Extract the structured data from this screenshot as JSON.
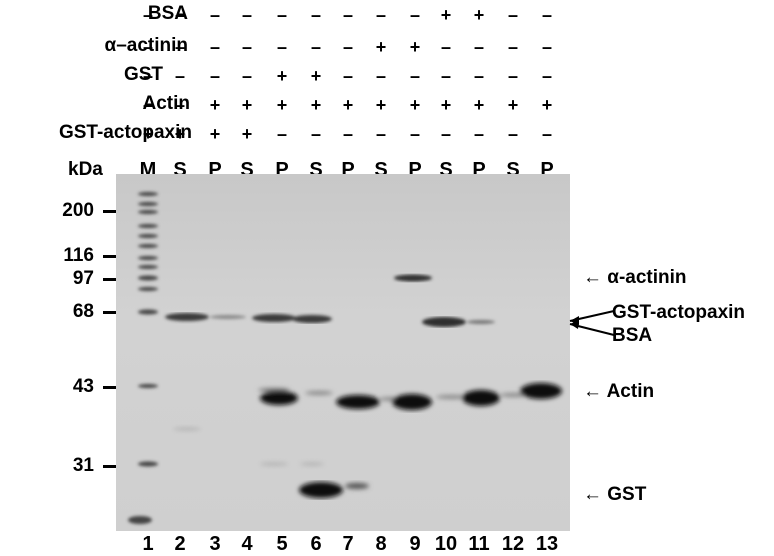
{
  "conditions": [
    {
      "label": "BSA",
      "signs": [
        "–",
        "–",
        "–",
        "–",
        "–",
        "–",
        "–",
        "–",
        "–",
        "+",
        "+",
        "–",
        "–"
      ]
    },
    {
      "label": "α–actinin",
      "signs": [
        "–",
        "–",
        "–",
        "–",
        "–",
        "–",
        "–",
        "+",
        "+",
        "–",
        "–",
        "–",
        "–"
      ]
    },
    {
      "label": "GST",
      "signs": [
        "–",
        "–",
        "–",
        "–",
        "+",
        "+",
        "–",
        "–",
        "–",
        "–",
        "–",
        "–",
        "–"
      ]
    },
    {
      "label": "Actin",
      "signs": [
        "–",
        "–",
        "+",
        "+",
        "+",
        "+",
        "+",
        "+",
        "+",
        "+",
        "+",
        "+",
        "+"
      ]
    },
    {
      "label": "GST-actopaxin",
      "signs": [
        "+",
        "+",
        "+",
        "+",
        "–",
        "–",
        "–",
        "–",
        "–",
        "–",
        "–",
        "–",
        "–"
      ]
    }
  ],
  "lane_headers": [
    "M",
    "S",
    "P",
    "S",
    "P",
    "S",
    "P",
    "S",
    "P",
    "S",
    "P",
    "S",
    "P"
  ],
  "kda_label": "kDa",
  "markers": [
    "200",
    "116",
    "97",
    "68",
    "43",
    "31"
  ],
  "lane_numbers": [
    "1",
    "2",
    "3",
    "4",
    "5",
    "6",
    "7",
    "8",
    "9",
    "10",
    "11",
    "12",
    "13"
  ],
  "band_labels": {
    "alpha_actinin": "α-actinin",
    "gst_actopaxin": "GST-actopaxin",
    "bsa": "BSA",
    "actin": "Actin",
    "gst": "GST"
  },
  "arrow_glyph": "←"
}
